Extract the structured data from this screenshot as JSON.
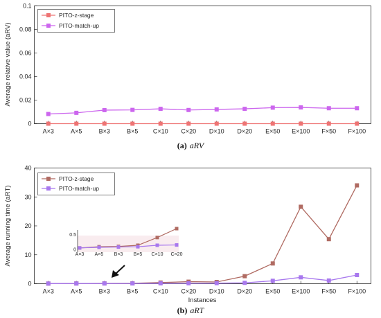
{
  "chart_data": [
    {
      "type": "line",
      "caption_label": "(a)",
      "caption_text": "aRV",
      "xlabel": "",
      "ylabel": "Average relative value (aRV)",
      "categories": [
        "A×3",
        "A×5",
        "B×3",
        "B×5",
        "C×10",
        "C×20",
        "D×10",
        "D×20",
        "E×50",
        "E×100",
        "F×50",
        "F×100"
      ],
      "ylim": [
        0,
        0.1
      ],
      "yticks": [
        "0",
        "0.02",
        "0.04",
        "0.06",
        "0.08",
        "0.1"
      ],
      "legend_position": "top-left",
      "grid": false,
      "series": [
        {
          "name": "PITO-z-stage",
          "color": "#ee7474",
          "values": [
            0,
            0,
            0,
            0,
            0,
            0,
            0,
            0,
            0,
            0,
            0,
            0
          ]
        },
        {
          "name": "PITO-match-up",
          "color": "#cc66ee",
          "values": [
            0.0082,
            0.0092,
            0.0115,
            0.0117,
            0.0126,
            0.0116,
            0.0121,
            0.0126,
            0.0136,
            0.0138,
            0.0131,
            0.0131
          ]
        }
      ]
    },
    {
      "type": "line",
      "caption_label": "(b)",
      "caption_text": "aRT",
      "xlabel": "Instances",
      "ylabel": "Average running time (aRT)",
      "categories": [
        "A×3",
        "A×5",
        "B×3",
        "B×5",
        "C×10",
        "C×20",
        "D×10",
        "D×20",
        "E×50",
        "E×100",
        "F×50",
        "F×100"
      ],
      "ylim": [
        0,
        40
      ],
      "yticks": [
        "0",
        "10",
        "20",
        "30",
        "40"
      ],
      "legend_position": "top-left",
      "grid": false,
      "series": [
        {
          "name": "PITO-z-stage",
          "color": "#b06b62",
          "values": [
            0.05,
            0.09,
            0.1,
            0.14,
            0.4,
            0.7,
            0.6,
            2.6,
            7.0,
            26.6,
            15.4,
            34.0
          ]
        },
        {
          "name": "PITO-match-up",
          "color": "#a878ee",
          "values": [
            0.05,
            0.07,
            0.08,
            0.09,
            0.14,
            0.15,
            0.2,
            0.3,
            1.0,
            2.2,
            1.1,
            3.0
          ]
        }
      ],
      "inset": {
        "categories": [
          "A×3",
          "A×5",
          "B×3",
          "B×5",
          "C×10",
          "C×20"
        ],
        "ylim": [
          0,
          0.7
        ],
        "yticks": [
          "0",
          "0.5"
        ],
        "series_values": [
          [
            0.05,
            0.09,
            0.1,
            0.14,
            0.4,
            0.7
          ],
          [
            0.05,
            0.07,
            0.08,
            0.09,
            0.14,
            0.15
          ]
        ]
      }
    }
  ]
}
